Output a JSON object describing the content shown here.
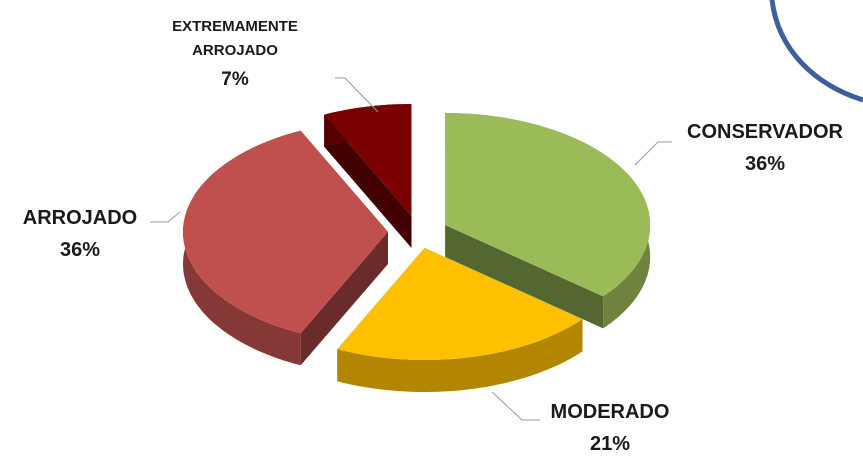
{
  "chart_data": {
    "type": "pie",
    "categories": [
      "CONSERVADOR",
      "MODERADO",
      "ARROJADO",
      "EXTREMAMENTE ARROJADO"
    ],
    "values": [
      36,
      21,
      36,
      7
    ],
    "value_labels": [
      "36%",
      "21%",
      "36%",
      "7%"
    ],
    "colors": [
      "#9bbb59",
      "#ffc000",
      "#c0504d",
      "#7a0000"
    ]
  }
}
